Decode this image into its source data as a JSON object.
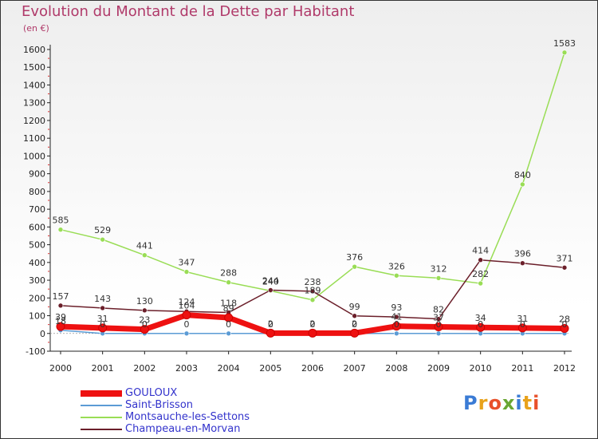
{
  "title": "Evolution du Montant de la Dette par Habitant",
  "unit": "(en €)",
  "logo": "Proxiti",
  "chart_data": {
    "type": "line",
    "x": [
      "2000",
      "2001",
      "2002",
      "2003",
      "2004",
      "2005",
      "2006",
      "2007",
      "2008",
      "2009",
      "2010",
      "2011",
      "2012"
    ],
    "ylim": [
      -100,
      1600
    ],
    "yticks": [
      -100,
      0,
      100,
      200,
      300,
      400,
      500,
      600,
      700,
      800,
      900,
      1000,
      1100,
      1200,
      1300,
      1400,
      1500,
      1600
    ],
    "grid": false,
    "legend": "bottom-left",
    "series": [
      {
        "name": "GOULOUX",
        "color": "#ee1111",
        "width": 7,
        "values": [
          39,
          31,
          23,
          104,
          89,
          2,
          2,
          2,
          41,
          37,
          34,
          31,
          28
        ],
        "labels": [
          "39",
          "31",
          "23",
          "104",
          "89",
          "2",
          "2",
          "2",
          "41",
          "37",
          "34",
          "31",
          "28"
        ]
      },
      {
        "name": "Saint-Brisson",
        "color": "#5b9bd5",
        "width": 1.5,
        "values": [
          18,
          0,
          0,
          0,
          0,
          0,
          0,
          0,
          0,
          0,
          0,
          0,
          0
        ],
        "labels": [
          "18",
          "0",
          "0",
          "0",
          "0",
          "0",
          "0",
          "0",
          "0",
          "0",
          "0",
          "0",
          "0"
        ]
      },
      {
        "name": "Montsauche-les-Settons",
        "color": "#99dd55",
        "width": 1.5,
        "values": [
          585,
          529,
          441,
          347,
          288,
          240,
          189,
          376,
          326,
          312,
          282,
          840,
          1583
        ],
        "labels": [
          "585",
          "529",
          "441",
          "347",
          "288",
          "240",
          "189",
          "376",
          "326",
          "312",
          "282",
          "840",
          "1583"
        ]
      },
      {
        "name": "Champeau-en-Morvan",
        "color": "#6b1f2a",
        "width": 1.5,
        "values": [
          157,
          143,
          130,
          124,
          118,
          244,
          238,
          99,
          93,
          82,
          414,
          396,
          371
        ],
        "labels": [
          "157",
          "143",
          "130",
          "124",
          "118",
          "244",
          "238",
          "99",
          "93",
          "82",
          "414",
          "396",
          "371"
        ]
      }
    ]
  }
}
